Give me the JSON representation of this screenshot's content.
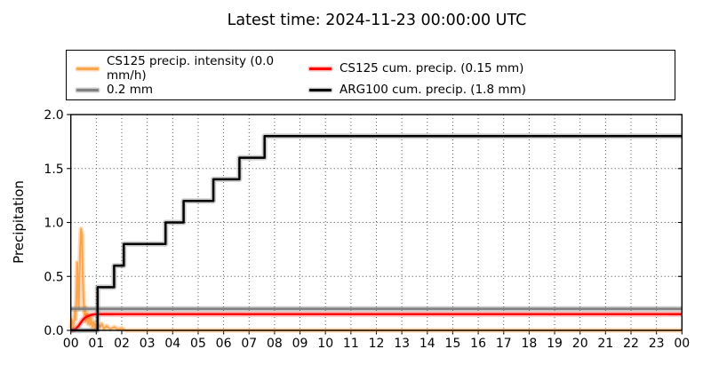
{
  "chart_data": {
    "type": "line",
    "title": "Latest time: 2024-11-23 00:00:00 UTC",
    "xlabel": "",
    "ylabel": "Precipitation",
    "xlim": [
      0,
      24
    ],
    "ylim": [
      0,
      2.0
    ],
    "grid": "dotted",
    "legend_position": "top",
    "legend_columns": 2,
    "xtick_values": [
      0,
      1,
      2,
      3,
      4,
      5,
      6,
      7,
      8,
      9,
      10,
      11,
      12,
      13,
      14,
      15,
      16,
      17,
      18,
      19,
      20,
      21,
      22,
      23,
      24
    ],
    "xtick_labels": [
      "00",
      "01",
      "02",
      "03",
      "04",
      "05",
      "06",
      "07",
      "08",
      "09",
      "10",
      "11",
      "12",
      "13",
      "14",
      "15",
      "16",
      "17",
      "18",
      "19",
      "20",
      "21",
      "22",
      "23",
      "00"
    ],
    "ytick_values": [
      0,
      0.5,
      1.0,
      1.5,
      2.0
    ],
    "ytick_labels": [
      "0.0",
      "0.5",
      "1.0",
      "1.5",
      "2.0"
    ],
    "series": [
      {
        "name": "CS125 precip. intensity (0.0 mm/h)",
        "color": "#FCA44E",
        "halo": "rgba(252,164,78,0.40)",
        "width": 2,
        "type": "line",
        "points": [
          [
            0,
            0.02
          ],
          [
            0.04,
            0.1
          ],
          [
            0.08,
            0.03
          ],
          [
            0.12,
            0.07
          ],
          [
            0.16,
            0.18
          ],
          [
            0.19,
            0.1
          ],
          [
            0.22,
            0.3
          ],
          [
            0.25,
            0.63
          ],
          [
            0.28,
            0.4
          ],
          [
            0.31,
            0.2
          ],
          [
            0.34,
            0.5
          ],
          [
            0.37,
            0.78
          ],
          [
            0.4,
            0.94
          ],
          [
            0.44,
            0.88
          ],
          [
            0.47,
            0.5
          ],
          [
            0.5,
            0.28
          ],
          [
            0.53,
            0.15
          ],
          [
            0.56,
            0.22
          ],
          [
            0.6,
            0.08
          ],
          [
            0.64,
            0.16
          ],
          [
            0.68,
            0.06
          ],
          [
            0.72,
            0.12
          ],
          [
            0.76,
            0.05
          ],
          [
            0.8,
            0.11
          ],
          [
            0.85,
            0.03
          ],
          [
            0.9,
            0.08
          ],
          [
            0.95,
            0.02
          ],
          [
            1.0,
            0.06
          ],
          [
            1.05,
            0.02
          ],
          [
            1.1,
            0.05
          ],
          [
            1.15,
            0.03
          ],
          [
            1.22,
            0.06
          ],
          [
            1.3,
            0.01
          ],
          [
            1.4,
            0.04
          ],
          [
            1.55,
            0.01
          ],
          [
            1.7,
            0.03
          ],
          [
            1.85,
            0.01
          ],
          [
            2.0,
            0.02
          ],
          [
            2.15,
            0.0
          ],
          [
            24,
            0.0
          ]
        ]
      },
      {
        "name": "0.2 mm",
        "color": "#808080",
        "halo": "rgba(128,128,128,0.40)",
        "width": 2.5,
        "type": "line",
        "points": [
          [
            0,
            0.2
          ],
          [
            24,
            0.2
          ]
        ]
      },
      {
        "name": "CS125 cum. precip. (0.15 mm)",
        "color": "#FF0000",
        "halo": "rgba(255,0,0,0.28)",
        "width": 2.5,
        "type": "line",
        "points": [
          [
            0,
            0.0
          ],
          [
            0.1,
            0.005
          ],
          [
            0.2,
            0.015
          ],
          [
            0.3,
            0.04
          ],
          [
            0.4,
            0.075
          ],
          [
            0.5,
            0.105
          ],
          [
            0.6,
            0.125
          ],
          [
            0.7,
            0.135
          ],
          [
            0.8,
            0.143
          ],
          [
            0.9,
            0.147
          ],
          [
            1.0,
            0.15
          ],
          [
            24,
            0.15
          ]
        ]
      },
      {
        "name": "ARG100 cum. precip. (1.8 mm)",
        "color": "#000000",
        "halo": "rgba(110,110,110,0.35)",
        "width": 2.5,
        "type": "step-after",
        "points": [
          [
            0,
            0.0
          ],
          [
            1.05,
            0.4
          ],
          [
            1.7,
            0.6
          ],
          [
            2.08,
            0.8
          ],
          [
            3.72,
            1.0
          ],
          [
            4.43,
            1.2
          ],
          [
            5.6,
            1.4
          ],
          [
            6.62,
            1.6
          ],
          [
            7.61,
            1.8
          ],
          [
            24,
            1.8
          ]
        ]
      }
    ]
  }
}
